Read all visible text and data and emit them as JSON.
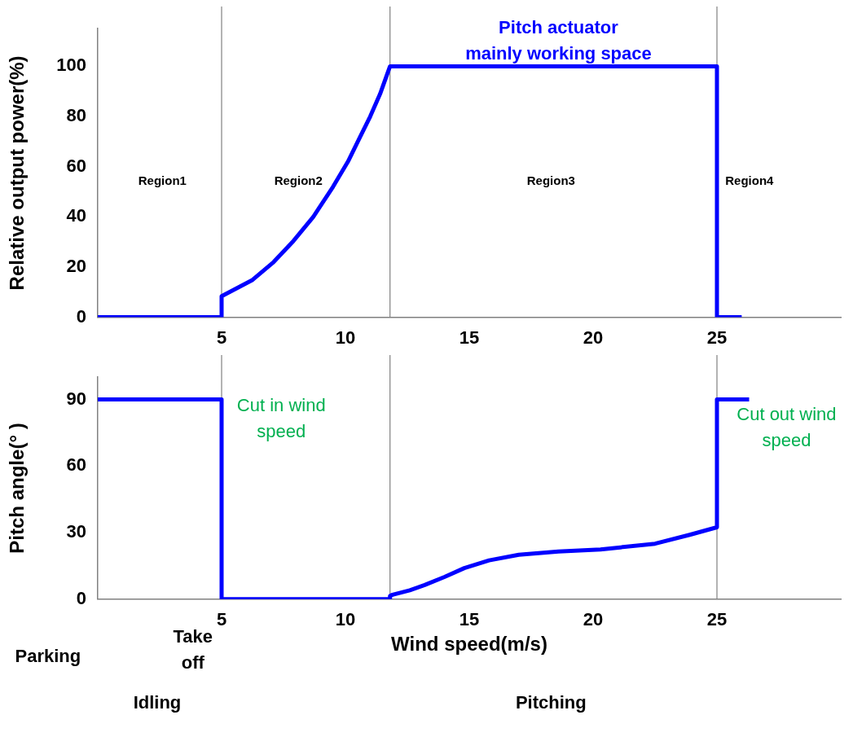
{
  "chart_data": [
    {
      "type": "line",
      "ylabel": "Relative output power(%)",
      "series": [
        {
          "color": "#0000ff",
          "x": [
            0,
            5,
            5,
            6.25,
            7.1,
            7.9,
            8.7,
            9.5,
            10.1,
            10.6,
            11.0,
            11.4,
            11.8,
            25,
            25,
            26
          ],
          "values": [
            0,
            0,
            8.4,
            14.9,
            22,
            30.4,
            40,
            52,
            62,
            72,
            80,
            89,
            100,
            100,
            0,
            0
          ]
        }
      ],
      "xlim": [
        0,
        30
      ],
      "xticks": [
        5,
        10,
        15,
        20,
        25
      ],
      "ylim": [
        0,
        115
      ],
      "yticks": [
        0,
        20,
        40,
        60,
        80,
        100
      ],
      "grid": false,
      "legend": false,
      "marker": "none",
      "line_style": "solid",
      "ref_lines": [
        {
          "axis": "x",
          "value": 5,
          "color": "#808080"
        },
        {
          "axis": "x",
          "value": 11.8,
          "color": "#808080"
        },
        {
          "axis": "x",
          "value": 25,
          "color": "#808080"
        }
      ],
      "annotations": [
        "Region1",
        "Region2",
        "Region3",
        "Region4",
        "Pitch actuator\nmainly working space"
      ]
    },
    {
      "type": "line",
      "xlabel": "Wind speed(m/s)",
      "ylabel": "Pitch angle(° )",
      "series": [
        {
          "color": "#0000ff",
          "x": [
            0,
            5,
            5,
            11.8,
            11.8,
            11.9,
            12.6,
            13.2,
            14.0,
            14.8,
            15.8,
            17,
            18.6,
            20.3,
            22.5,
            23.9,
            25,
            25,
            26.3
          ],
          "values": [
            90,
            90,
            0,
            0,
            1.5,
            2,
            4,
            6.4,
            10,
            14,
            17.5,
            20,
            21.5,
            22.4,
            25,
            29,
            32.4,
            90,
            90
          ]
        }
      ],
      "xlim": [
        0,
        30
      ],
      "xticks": [
        5,
        10,
        15,
        20,
        25
      ],
      "ylim": [
        0,
        100
      ],
      "yticks": [
        0,
        30,
        60,
        90
      ],
      "grid": false,
      "legend": false,
      "marker": "none",
      "line_style": "solid",
      "ref_lines": [
        {
          "axis": "x",
          "value": 5,
          "color": "#808080"
        },
        {
          "axis": "x",
          "value": 11.8,
          "color": "#808080"
        },
        {
          "axis": "x",
          "value": 25,
          "color": "#808080"
        }
      ],
      "annotations": [
        "Cut in wind\nspeed",
        "Cut out wind\nspeed",
        "Parking",
        "Take\noff",
        "Idling",
        "Pitching"
      ]
    }
  ]
}
